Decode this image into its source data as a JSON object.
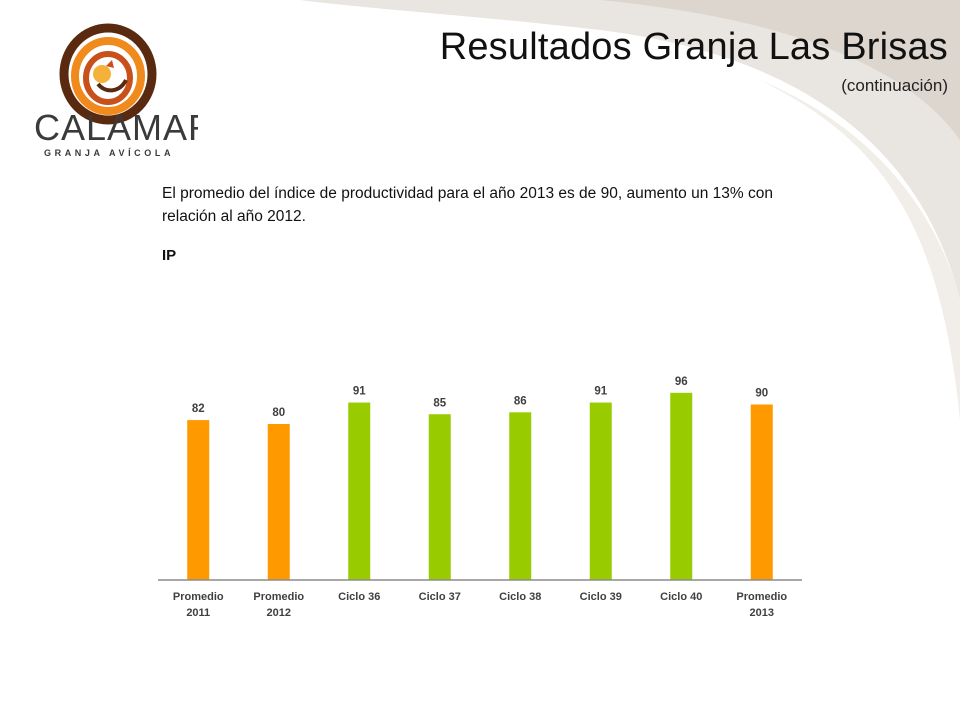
{
  "header": {
    "title": "Resultados Granja Las Brisas",
    "subtitle": "(continuación)"
  },
  "logo": {
    "brand": "CALAMAR",
    "tagline": "GRANJA AVÍCOLA",
    "icon": "rooster-swirl-logo"
  },
  "content": {
    "description": "El promedio del índice de productividad para el año 2013 es de 90,  aumento un 13% con relación al año 2012.",
    "chart_label": "IP"
  },
  "colors": {
    "orange": "#FF9900",
    "green": "#99CC00",
    "logo_brown": "#5A2A10",
    "logo_orange": "#F08A1C",
    "swoosh": "#E9E5E0"
  },
  "chart_data": {
    "type": "bar",
    "categories": [
      "Promedio 2011",
      "Promedio 2012",
      "Ciclo 36",
      "Ciclo 37",
      "Ciclo 38",
      "Ciclo 39",
      "Ciclo 40",
      "Promedio 2013"
    ],
    "values": [
      82,
      80,
      91,
      85,
      86,
      91,
      96,
      90
    ],
    "bar_colors": [
      "#FF9900",
      "#FF9900",
      "#99CC00",
      "#99CC00",
      "#99CC00",
      "#99CC00",
      "#99CC00",
      "#FF9900"
    ],
    "ylim": [
      0,
      100
    ],
    "grid": false,
    "legend": "none"
  }
}
